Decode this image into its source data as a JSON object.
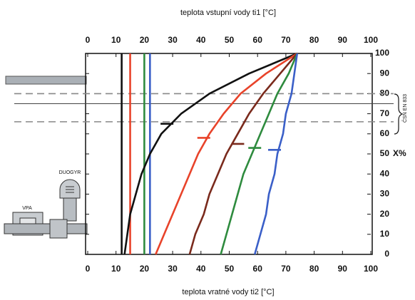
{
  "chart_data": {
    "type": "line",
    "title": "teplota vstupní vody ti1 [°C]",
    "xlabel": "teplota vratné vody ti2 [°C]",
    "ylabel": "X%",
    "xlim": [
      0,
      100
    ],
    "xticks": [
      0,
      10,
      20,
      30,
      40,
      50,
      60,
      70,
      80,
      90,
      100
    ],
    "x2lim": [
      0,
      100
    ],
    "x2ticks": [
      0,
      10,
      20,
      30,
      40,
      50,
      60,
      70,
      80,
      90,
      100
    ],
    "ylim": [
      0,
      100
    ],
    "yticks": [
      0,
      10,
      20,
      30,
      40,
      50,
      60,
      70,
      80,
      90,
      100
    ],
    "series": [
      {
        "color": "#111111",
        "x": [
          13,
          14,
          15,
          17,
          19,
          22,
          26,
          33,
          43,
          57,
          74
        ],
        "values": [
          0,
          10,
          20,
          30,
          40,
          50,
          60,
          70,
          80,
          90,
          100
        ]
      },
      {
        "color": "#e8432a",
        "x": [
          24,
          27,
          30,
          33,
          36,
          39,
          43,
          48,
          54,
          63,
          74
        ],
        "values": [
          0,
          10,
          20,
          30,
          40,
          50,
          60,
          70,
          80,
          90,
          100
        ]
      },
      {
        "color": "#7a2a1c",
        "x": [
          36,
          38,
          41,
          43,
          46,
          49,
          53,
          57,
          62,
          68,
          74
        ],
        "values": [
          0,
          10,
          20,
          30,
          40,
          50,
          60,
          70,
          80,
          90,
          100
        ]
      },
      {
        "color": "#2e8b3e",
        "x": [
          47,
          49,
          51,
          53,
          55,
          58,
          61,
          64,
          67,
          71,
          74
        ],
        "values": [
          0,
          10,
          20,
          30,
          40,
          50,
          60,
          70,
          80,
          90,
          100
        ]
      },
      {
        "color": "#3a5fc8",
        "x": [
          59,
          61,
          63,
          64,
          66,
          67,
          69,
          70,
          72,
          73,
          74
        ],
        "values": [
          0,
          10,
          20,
          30,
          40,
          50,
          60,
          70,
          80,
          90,
          100
        ]
      }
    ],
    "vertical_lines": [
      {
        "x": 12,
        "color": "#111111"
      },
      {
        "x": 15,
        "color": "#e8432a"
      },
      {
        "x": 20,
        "color": "#2e8b3e"
      },
      {
        "x": 22,
        "color": "#3a5fc8"
      }
    ],
    "horizontal_lines": [
      {
        "y": 80,
        "style": "dashed"
      },
      {
        "y": 75,
        "style": "solid"
      },
      {
        "y": 66,
        "style": "dashed"
      }
    ],
    "markers": [
      {
        "x": 28,
        "y": 65,
        "color": "#111111"
      },
      {
        "x": 41,
        "y": 58,
        "color": "#e8432a"
      },
      {
        "x": 53,
        "y": 55,
        "color": "#7a2a1c"
      },
      {
        "x": 59,
        "y": 53,
        "color": "#2e8b3e"
      },
      {
        "x": 66,
        "y": 52,
        "color": "#3a5fc8"
      }
    ],
    "standard_label": "ČSN EN 833",
    "device_labels": [
      "DUOGYR",
      "VPA"
    ]
  }
}
